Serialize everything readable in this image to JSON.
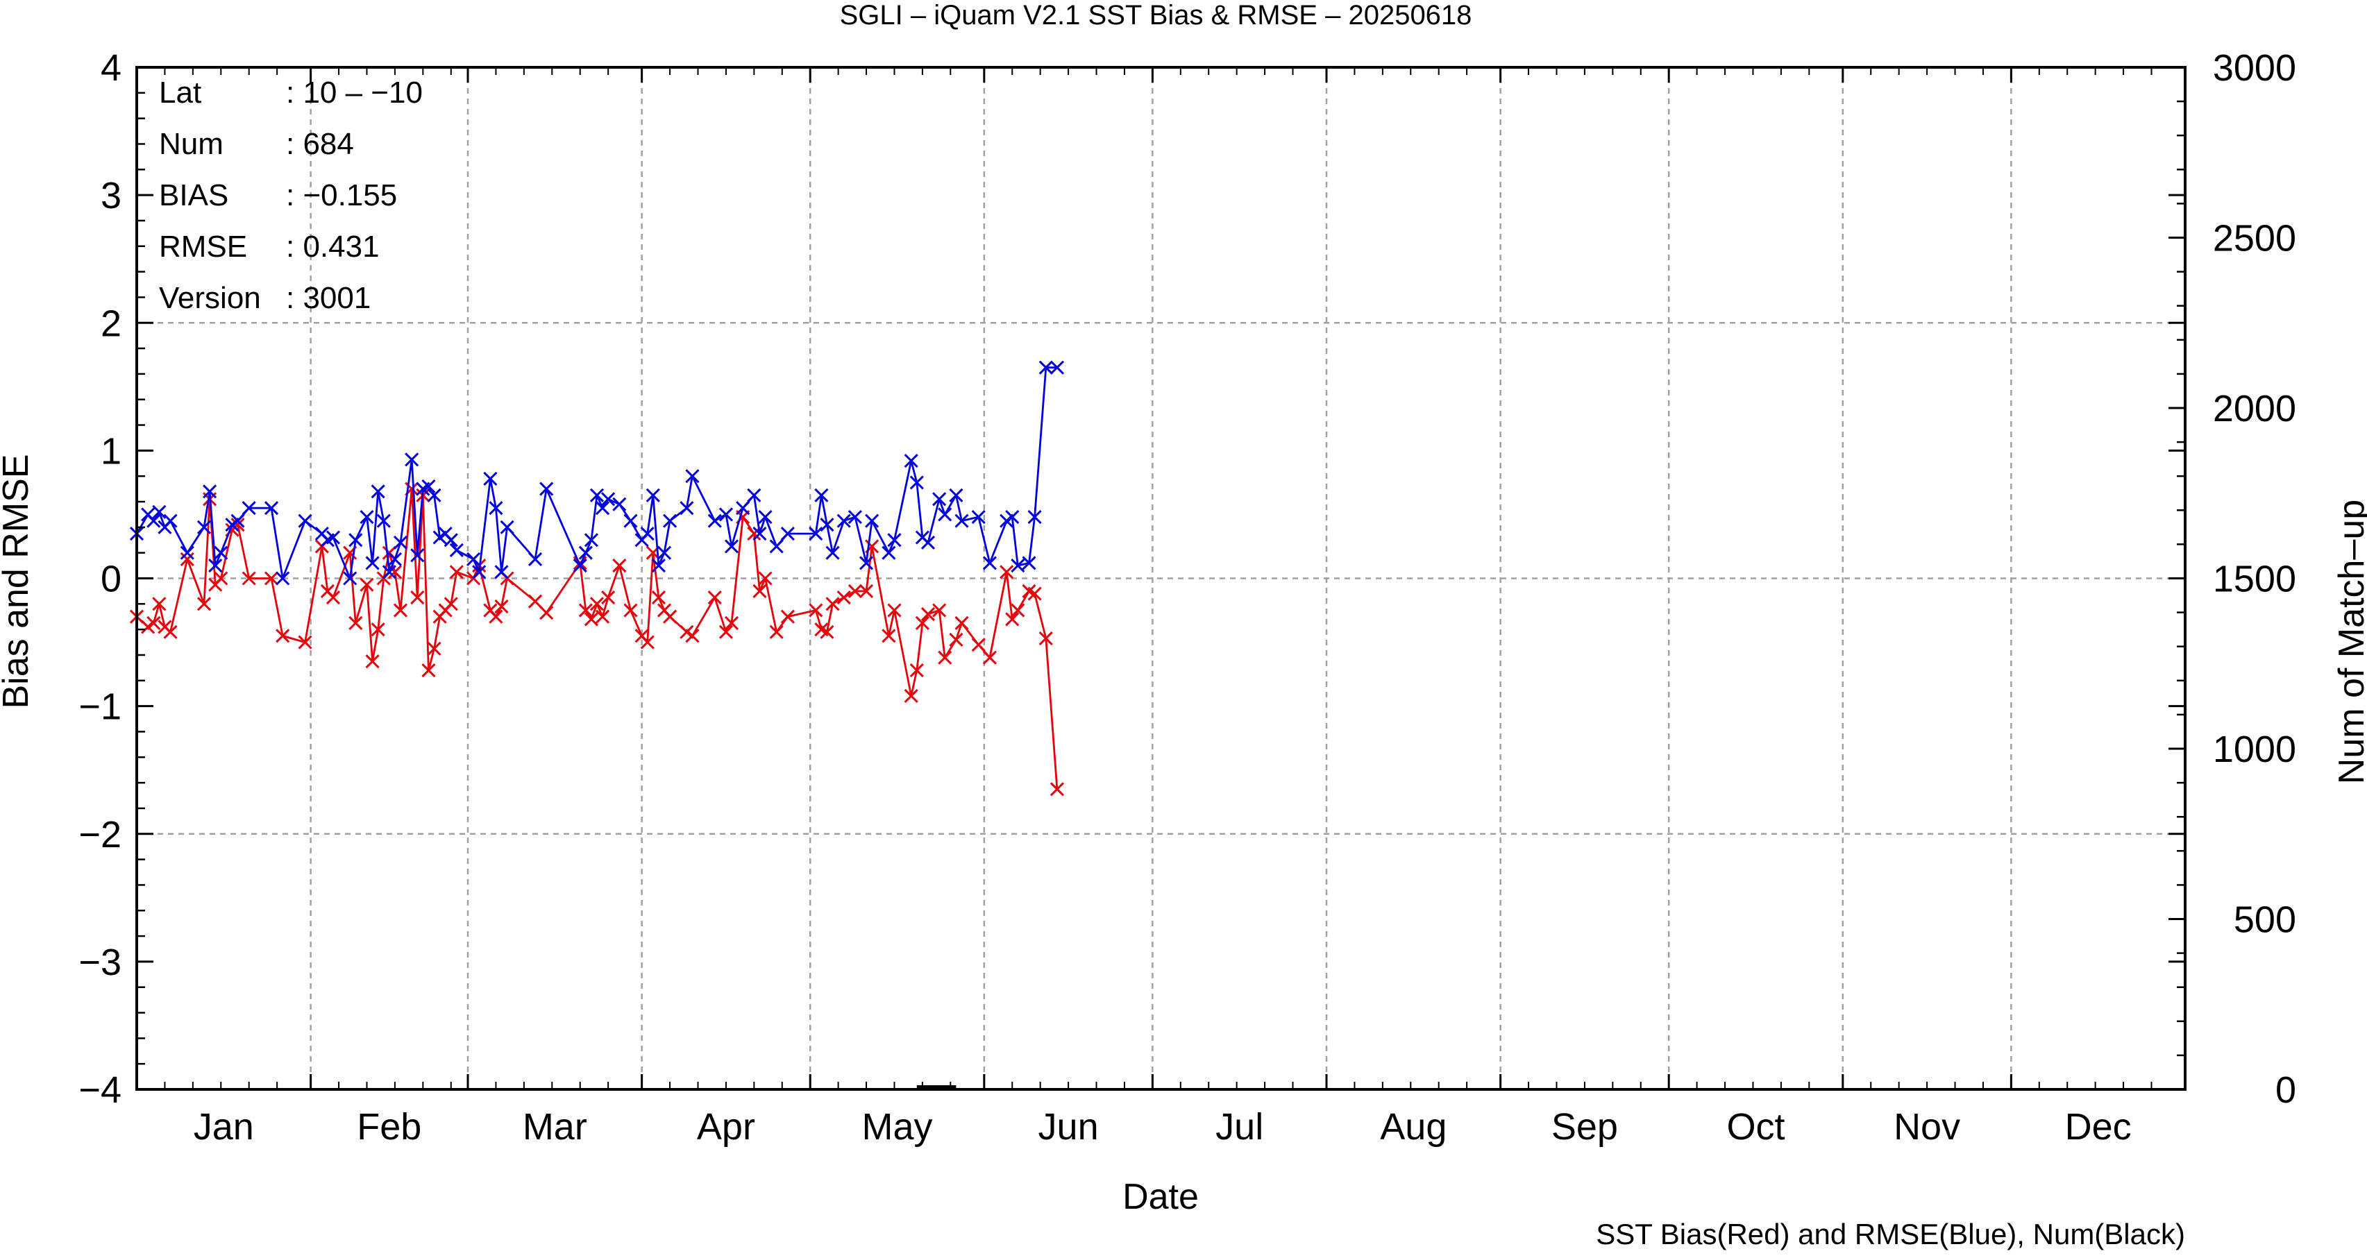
{
  "chart_data": {
    "type": "line",
    "title": "SGLI – iQuam V2.1 SST Bias & RMSE  – 20250618",
    "xlabel": "Date",
    "ylabel": "Bias and RMSE",
    "y2label": "Num of Match–up",
    "footer": "SST Bias(Red) and RMSE(Blue), Num(Black)",
    "ylim": [
      -4,
      4
    ],
    "y2lim": [
      0,
      3000
    ],
    "xlim_day": [
      1,
      366
    ],
    "yticks": [
      "4",
      "3",
      "2",
      "1",
      "0",
      "−1",
      "−2",
      "−3",
      "−4"
    ],
    "y2ticks": [
      "3000",
      "2500",
      "2000",
      "1500",
      "1000",
      "500",
      "0"
    ],
    "months": [
      "Jan",
      "Feb",
      "Mar",
      "Apr",
      "May",
      "Jun",
      "Jul",
      "Aug",
      "Sep",
      "Oct",
      "Nov",
      "Dec"
    ],
    "grid": true,
    "colors": {
      "bias": "#e8000b",
      "rmse": "#0000e0",
      "num": "#000000",
      "grid": "#a0a0a0"
    },
    "stats": [
      {
        "label": "Lat",
        "value": ": 10 – −10"
      },
      {
        "label": "Num",
        "value": ": 684"
      },
      {
        "label": "BIAS",
        "value": ": −0.155"
      },
      {
        "label": "RMSE",
        "value": ": 0.431"
      },
      {
        "label": "Version",
        "value": ": 3001"
      }
    ],
    "series": [
      {
        "name": "Bias",
        "color": "#e8000b",
        "x": [
          1,
          3,
          4,
          5,
          6,
          7,
          10,
          13,
          14,
          15,
          16,
          18,
          19,
          21,
          25,
          27,
          31,
          34,
          35,
          36,
          39,
          40,
          42,
          43,
          44,
          45,
          46,
          47,
          48,
          50,
          51,
          52,
          53,
          54,
          55,
          56,
          57,
          58,
          61,
          62,
          64,
          65,
          66,
          67,
          72,
          74,
          80,
          81,
          82,
          83,
          84,
          85,
          87,
          89,
          91,
          92,
          93,
          94,
          95,
          96,
          99,
          100,
          104,
          106,
          107,
          109,
          111,
          112,
          113,
          115,
          117,
          122,
          123,
          124,
          125,
          127,
          129,
          131,
          132,
          135,
          136,
          139,
          140,
          141,
          142,
          144,
          145,
          147,
          148,
          151,
          153,
          156,
          157,
          158,
          160,
          161,
          163,
          165
        ],
        "y": [
          -0.3,
          -0.38,
          -0.35,
          -0.2,
          -0.38,
          -0.42,
          0.15,
          -0.2,
          0.62,
          -0.05,
          0.0,
          0.38,
          0.42,
          0.0,
          0.0,
          -0.45,
          -0.5,
          0.25,
          -0.1,
          -0.15,
          0.2,
          -0.35,
          -0.05,
          -0.65,
          -0.4,
          0.0,
          0.2,
          0.05,
          -0.25,
          0.7,
          -0.15,
          0.65,
          -0.72,
          -0.55,
          -0.3,
          -0.25,
          -0.2,
          0.05,
          0.0,
          0.1,
          -0.25,
          -0.3,
          -0.22,
          0.0,
          -0.18,
          -0.27,
          0.12,
          -0.25,
          -0.32,
          -0.2,
          -0.3,
          -0.15,
          0.1,
          -0.25,
          -0.45,
          -0.5,
          0.2,
          -0.15,
          -0.25,
          -0.3,
          -0.42,
          -0.45,
          -0.15,
          -0.42,
          -0.35,
          0.48,
          0.35,
          -0.1,
          0.0,
          -0.42,
          -0.3,
          -0.25,
          -0.4,
          -0.42,
          -0.2,
          -0.15,
          -0.1,
          -0.1,
          0.25,
          -0.45,
          -0.25,
          -0.92,
          -0.72,
          -0.35,
          -0.28,
          -0.25,
          -0.62,
          -0.48,
          -0.35,
          -0.52,
          -0.62,
          0.05,
          -0.32,
          -0.25,
          -0.1,
          -0.12,
          -0.47,
          -1.65
        ]
      },
      {
        "name": "RMSE",
        "color": "#0000e0",
        "x": [
          1,
          3,
          4,
          5,
          6,
          7,
          10,
          13,
          14,
          15,
          16,
          18,
          19,
          21,
          25,
          27,
          31,
          34,
          35,
          36,
          39,
          40,
          42,
          43,
          44,
          45,
          46,
          47,
          48,
          50,
          51,
          52,
          53,
          54,
          55,
          56,
          57,
          58,
          61,
          62,
          64,
          65,
          66,
          67,
          72,
          74,
          80,
          81,
          82,
          83,
          84,
          85,
          87,
          89,
          91,
          92,
          93,
          94,
          95,
          96,
          99,
          100,
          104,
          106,
          107,
          109,
          111,
          112,
          113,
          115,
          117,
          122,
          123,
          124,
          125,
          127,
          129,
          131,
          132,
          135,
          136,
          139,
          140,
          141,
          142,
          144,
          145,
          147,
          148,
          151,
          153,
          156,
          157,
          158,
          160,
          161,
          163,
          165
        ],
        "y": [
          0.35,
          0.5,
          0.45,
          0.52,
          0.4,
          0.45,
          0.2,
          0.4,
          0.68,
          0.1,
          0.2,
          0.42,
          0.45,
          0.55,
          0.55,
          0.0,
          0.45,
          0.35,
          0.3,
          0.32,
          0.0,
          0.3,
          0.48,
          0.12,
          0.68,
          0.45,
          0.05,
          0.15,
          0.28,
          0.93,
          0.18,
          0.7,
          0.72,
          0.65,
          0.32,
          0.35,
          0.3,
          0.22,
          0.15,
          0.05,
          0.78,
          0.55,
          0.05,
          0.4,
          0.15,
          0.7,
          0.1,
          0.2,
          0.3,
          0.65,
          0.55,
          0.62,
          0.58,
          0.45,
          0.3,
          0.35,
          0.65,
          0.1,
          0.2,
          0.45,
          0.55,
          0.8,
          0.45,
          0.5,
          0.25,
          0.55,
          0.65,
          0.35,
          0.48,
          0.25,
          0.35,
          0.35,
          0.65,
          0.42,
          0.2,
          0.45,
          0.48,
          0.12,
          0.45,
          0.2,
          0.3,
          0.92,
          0.75,
          0.32,
          0.28,
          0.62,
          0.5,
          0.65,
          0.45,
          0.48,
          0.12,
          0.45,
          0.48,
          0.1,
          0.12,
          0.48,
          1.65,
          1.65
        ]
      }
    ],
    "num_series": {
      "name": "Num",
      "color": "#000000",
      "x": [
        140,
        147
      ],
      "y": [
        2,
        2
      ]
    }
  }
}
